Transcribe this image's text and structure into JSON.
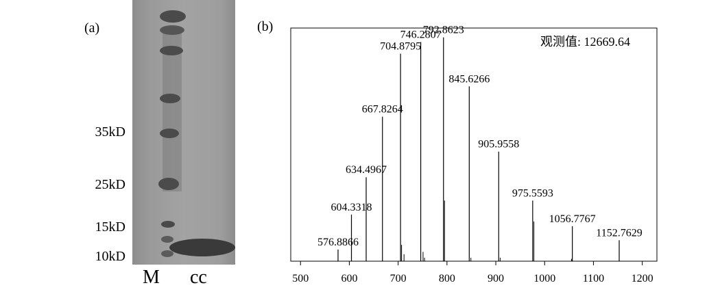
{
  "panel_a": {
    "label": "(a)",
    "markers": [
      "35kD",
      "25kD",
      "15kD",
      "10kD"
    ],
    "lanes": [
      "M",
      "cc"
    ]
  },
  "panel_b": {
    "label": "(b)"
  },
  "chart_data": {
    "type": "bar",
    "title": "",
    "annotation": "观测值:  12669.64",
    "xlabel": "",
    "ylabel": "",
    "xlim": [
      480,
      1230
    ],
    "ylim": [
      0,
      100
    ],
    "xticks": [
      500,
      600,
      700,
      800,
      900,
      1000,
      1100,
      1200
    ],
    "grid": false,
    "peaks": [
      {
        "x": 576.8866,
        "y": 5,
        "label": "576.8866"
      },
      {
        "x": 604.3318,
        "y": 20,
        "label": "604.3318"
      },
      {
        "x": 634.4967,
        "y": 36,
        "label": "634.4967"
      },
      {
        "x": 667.8264,
        "y": 62,
        "label": "667.8264"
      },
      {
        "x": 704.8795,
        "y": 89,
        "label": "704.8795"
      },
      {
        "x": 746.2807,
        "y": 94,
        "label": "746.2807"
      },
      {
        "x": 792.8623,
        "y": 96,
        "label": "792.8623"
      },
      {
        "x": 845.6266,
        "y": 75,
        "label": "845.6266"
      },
      {
        "x": 905.9558,
        "y": 47,
        "label": "905.9558"
      },
      {
        "x": 975.5593,
        "y": 26,
        "label": "975.5593"
      },
      {
        "x": 1056.7767,
        "y": 15,
        "label": "1056.7767"
      },
      {
        "x": 1152.7629,
        "y": 9,
        "label": "1152.7629"
      }
    ],
    "minor_peaks": [
      {
        "x": 707,
        "y": 7
      },
      {
        "x": 712,
        "y": 3
      },
      {
        "x": 751,
        "y": 4
      },
      {
        "x": 754,
        "y": 1.5
      },
      {
        "x": 795,
        "y": 26
      },
      {
        "x": 849,
        "y": 1.5
      },
      {
        "x": 909,
        "y": 1.5
      },
      {
        "x": 978,
        "y": 17
      },
      {
        "x": 1055,
        "y": 1
      }
    ]
  }
}
